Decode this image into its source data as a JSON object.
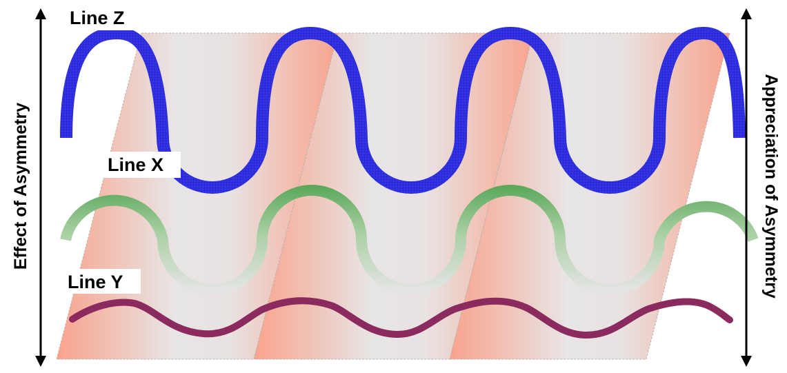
{
  "axes": {
    "left_label": "Effect of Asymmetry",
    "right_label": "Appreciation of Asymmetry"
  },
  "lines": {
    "z": {
      "label": "Line Z",
      "color": "#2f2fe0"
    },
    "x": {
      "label": "Line X",
      "color": "#5aa85a"
    },
    "y": {
      "label": "Line Y",
      "color": "#8b2a5e"
    }
  },
  "colors": {
    "band_salmon": "#f9a38c",
    "band_grey": "#e6e4e4"
  }
}
